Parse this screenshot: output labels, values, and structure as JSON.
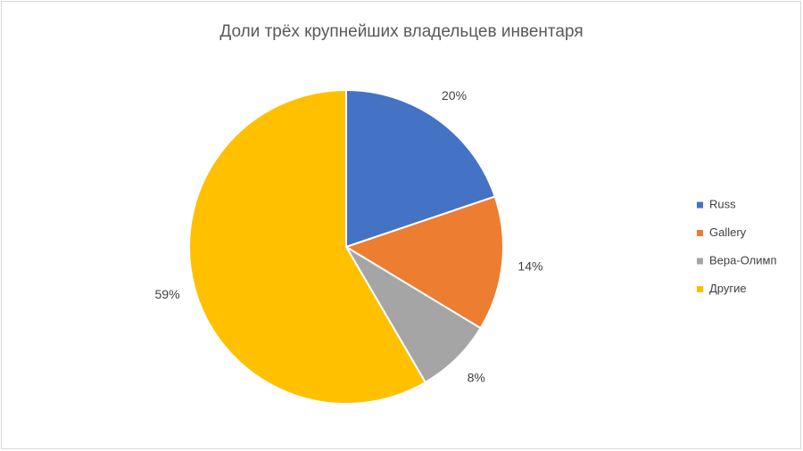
{
  "chart_data": {
    "type": "pie",
    "title": "Доли трёх крупнейших владельцев инвентаря",
    "categories": [
      "Russ",
      "Gallery",
      "Вера-Олимп",
      "Другие"
    ],
    "values": [
      20,
      14,
      8,
      59
    ],
    "value_labels": [
      "20%",
      "14%",
      "8%",
      "59%"
    ],
    "colors": [
      "#4472c4",
      "#ed7d31",
      "#a5a5a5",
      "#ffc000"
    ],
    "legend": "right"
  }
}
